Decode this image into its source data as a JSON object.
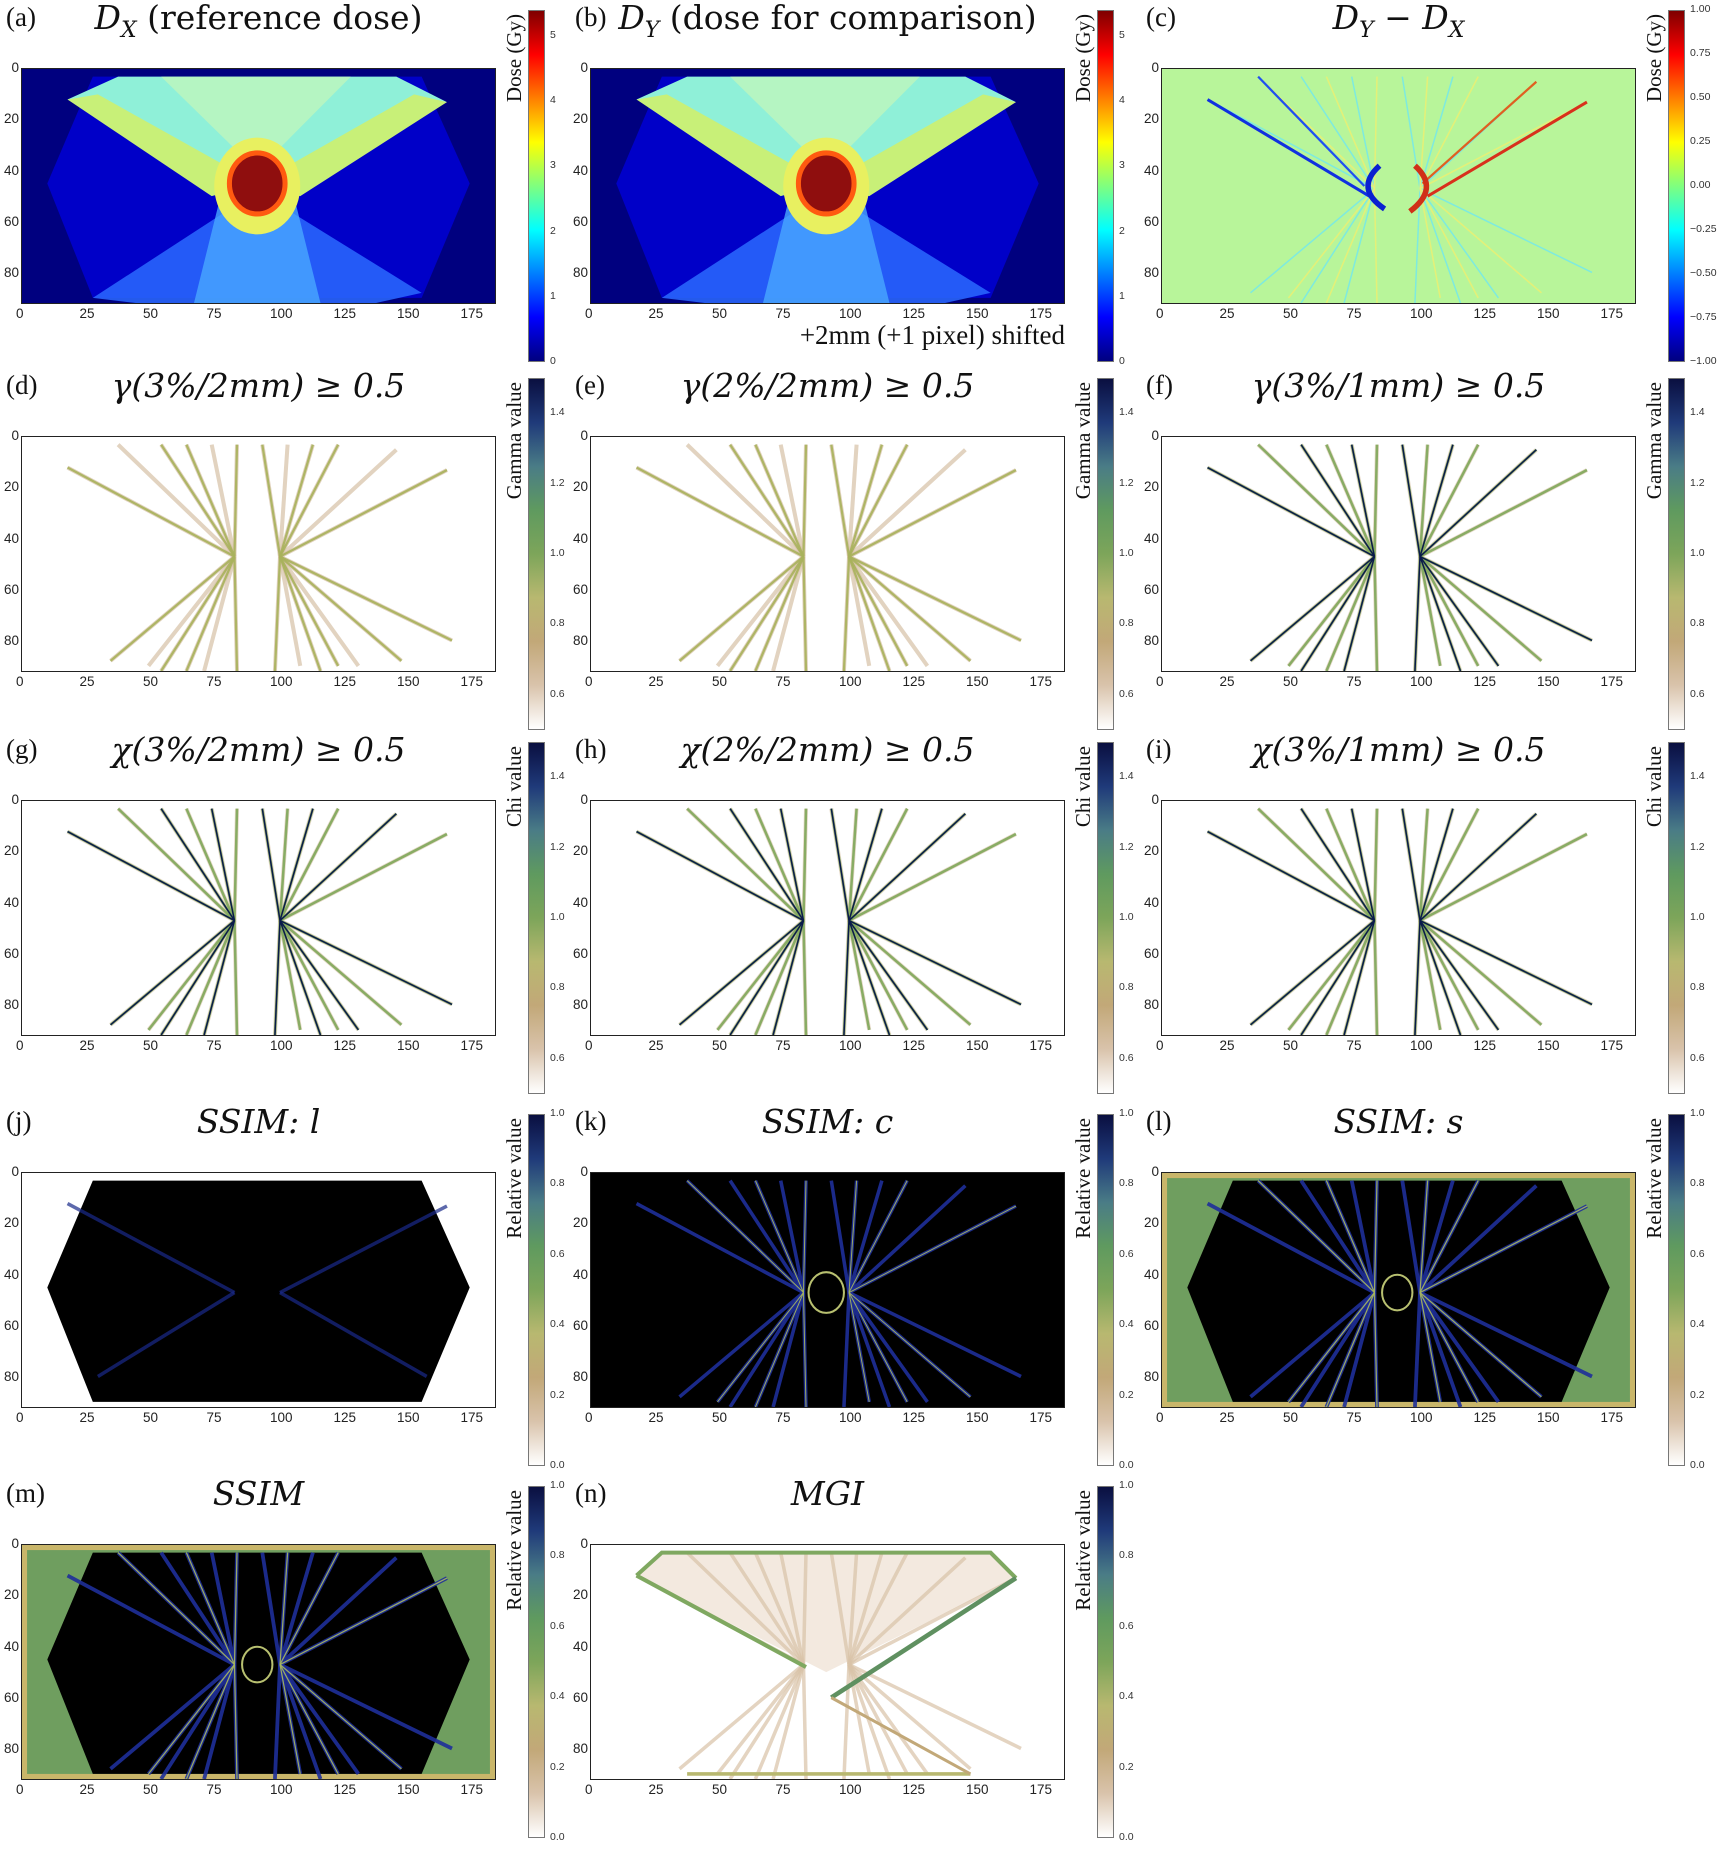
{
  "colormaps": {
    "jet": [
      "#00007f",
      "#0000ff",
      "#007fff",
      "#00ffff",
      "#7fff7f",
      "#ffff00",
      "#ff7f00",
      "#ff0000",
      "#7f0000"
    ],
    "earth_r": [
      "#ffffff",
      "#d9c3ab",
      "#c2a878",
      "#b8b870",
      "#7da55a",
      "#5f9a5f",
      "#4a7c86",
      "#1f3a7a",
      "#0a0f40"
    ]
  },
  "chart_data": [
    {
      "id": "a",
      "type": "heatmap",
      "label": "(a)",
      "title": [
        {
          "t": "D",
          "sub": "X"
        },
        {
          "t": " (reference dose)",
          "up": true
        }
      ],
      "xticks": [
        0,
        25,
        50,
        75,
        100,
        125,
        150,
        175
      ],
      "yticks": [
        0,
        20,
        40,
        60,
        80
      ],
      "xlim": [
        0,
        187
      ],
      "ylim": [
        92,
        0
      ],
      "colorbar": {
        "label": "Dose (Gy)",
        "ticks": [
          "0",
          "1",
          "2",
          "3",
          "4",
          "5"
        ],
        "range": [
          0,
          5.4
        ],
        "colormap": "jet"
      }
    },
    {
      "id": "b",
      "type": "heatmap",
      "label": "(b)",
      "title": [
        {
          "t": "D",
          "sub": "Y"
        },
        {
          "t": " (dose for comparison)",
          "up": true
        }
      ],
      "annotation": "+2mm (+1 pixel) shifted",
      "xticks": [
        0,
        25,
        50,
        75,
        100,
        125,
        150,
        175
      ],
      "yticks": [
        0,
        20,
        40,
        60,
        80
      ],
      "xlim": [
        0,
        187
      ],
      "ylim": [
        92,
        0
      ],
      "colorbar": {
        "label": "Dose (Gy)",
        "ticks": [
          "0",
          "1",
          "2",
          "3",
          "4",
          "5"
        ],
        "range": [
          0,
          5.4
        ],
        "colormap": "jet"
      }
    },
    {
      "id": "c",
      "type": "heatmap",
      "label": "(c)",
      "title": [
        {
          "t": "D",
          "sub": "Y"
        },
        {
          "t": " − ",
          "up": true
        },
        {
          "t": "D",
          "sub": "X"
        }
      ],
      "xticks": [
        0,
        25,
        50,
        75,
        100,
        125,
        150,
        175
      ],
      "yticks": [
        0,
        20,
        40,
        60,
        80
      ],
      "xlim": [
        0,
        187
      ],
      "ylim": [
        92,
        0
      ],
      "colorbar": {
        "label": "Dose (Gy)",
        "ticks": [
          "−1.00",
          "−0.75",
          "−0.50",
          "−0.25",
          "0.00",
          "0.25",
          "0.50",
          "0.75",
          "1.00"
        ],
        "range": [
          -1,
          1
        ],
        "colormap": "jet"
      }
    },
    {
      "id": "d",
      "type": "heatmap",
      "label": "(d)",
      "title": [
        {
          "t": "γ(3%/2mm) ≥ 0.5"
        }
      ],
      "xticks": [
        0,
        25,
        50,
        75,
        100,
        125,
        150,
        175
      ],
      "yticks": [
        0,
        20,
        40,
        60,
        80
      ],
      "xlim": [
        0,
        187
      ],
      "ylim": [
        92,
        0
      ],
      "colorbar": {
        "label": "Gamma value",
        "ticks": [
          "0.6",
          "0.8",
          "1.0",
          "1.2",
          "1.4"
        ],
        "range": [
          0.5,
          1.5
        ],
        "colormap": "earth_r"
      }
    },
    {
      "id": "e",
      "type": "heatmap",
      "label": "(e)",
      "title": [
        {
          "t": "γ(2%/2mm) ≥ 0.5"
        }
      ],
      "xticks": [
        0,
        25,
        50,
        75,
        100,
        125,
        150,
        175
      ],
      "yticks": [
        0,
        20,
        40,
        60,
        80
      ],
      "xlim": [
        0,
        187
      ],
      "ylim": [
        92,
        0
      ],
      "colorbar": {
        "label": "Gamma value",
        "ticks": [
          "0.6",
          "0.8",
          "1.0",
          "1.2",
          "1.4"
        ],
        "range": [
          0.5,
          1.5
        ],
        "colormap": "earth_r"
      }
    },
    {
      "id": "f",
      "type": "heatmap",
      "label": "(f)",
      "title": [
        {
          "t": "γ(3%/1mm) ≥ 0.5"
        }
      ],
      "xticks": [
        0,
        25,
        50,
        75,
        100,
        125,
        150,
        175
      ],
      "yticks": [
        0,
        20,
        40,
        60,
        80
      ],
      "xlim": [
        0,
        187
      ],
      "ylim": [
        92,
        0
      ],
      "colorbar": {
        "label": "Gamma value",
        "ticks": [
          "0.6",
          "0.8",
          "1.0",
          "1.2",
          "1.4"
        ],
        "range": [
          0.5,
          1.5
        ],
        "colormap": "earth_r"
      }
    },
    {
      "id": "g",
      "type": "heatmap",
      "label": "(g)",
      "title": [
        {
          "t": "χ(3%/2mm) ≥ 0.5"
        }
      ],
      "xticks": [
        0,
        25,
        50,
        75,
        100,
        125,
        150,
        175
      ],
      "yticks": [
        0,
        20,
        40,
        60,
        80
      ],
      "xlim": [
        0,
        187
      ],
      "ylim": [
        92,
        0
      ],
      "colorbar": {
        "label": "Chi value",
        "ticks": [
          "0.6",
          "0.8",
          "1.0",
          "1.2",
          "1.4"
        ],
        "range": [
          0.5,
          1.5
        ],
        "colormap": "earth_r"
      }
    },
    {
      "id": "h",
      "type": "heatmap",
      "label": "(h)",
      "title": [
        {
          "t": "χ(2%/2mm) ≥ 0.5"
        }
      ],
      "xticks": [
        0,
        25,
        50,
        75,
        100,
        125,
        150,
        175
      ],
      "yticks": [
        0,
        20,
        40,
        60,
        80
      ],
      "xlim": [
        0,
        187
      ],
      "ylim": [
        92,
        0
      ],
      "colorbar": {
        "label": "Chi value",
        "ticks": [
          "0.6",
          "0.8",
          "1.0",
          "1.2",
          "1.4"
        ],
        "range": [
          0.5,
          1.5
        ],
        "colormap": "earth_r"
      }
    },
    {
      "id": "i",
      "type": "heatmap",
      "label": "(i)",
      "title": [
        {
          "t": "χ(3%/1mm) ≥ 0.5"
        }
      ],
      "xticks": [
        0,
        25,
        50,
        75,
        100,
        125,
        150,
        175
      ],
      "yticks": [
        0,
        20,
        40,
        60,
        80
      ],
      "xlim": [
        0,
        187
      ],
      "ylim": [
        92,
        0
      ],
      "colorbar": {
        "label": "Chi value",
        "ticks": [
          "0.6",
          "0.8",
          "1.0",
          "1.2",
          "1.4"
        ],
        "range": [
          0.5,
          1.5
        ],
        "colormap": "earth_r"
      }
    },
    {
      "id": "j",
      "type": "heatmap",
      "label": "(j)",
      "title": [
        {
          "t": "SSIM: l"
        }
      ],
      "xticks": [
        0,
        25,
        50,
        75,
        100,
        125,
        150,
        175
      ],
      "yticks": [
        0,
        20,
        40,
        60,
        80
      ],
      "xlim": [
        0,
        187
      ],
      "ylim": [
        92,
        0
      ],
      "colorbar": {
        "label": "Relative value",
        "ticks": [
          "0.0",
          "0.2",
          "0.4",
          "0.6",
          "0.8",
          "1.0"
        ],
        "range": [
          0,
          1
        ],
        "colormap": "earth_r"
      }
    },
    {
      "id": "k",
      "type": "heatmap",
      "label": "(k)",
      "title": [
        {
          "t": "SSIM: c"
        }
      ],
      "xticks": [
        0,
        25,
        50,
        75,
        100,
        125,
        150,
        175
      ],
      "yticks": [
        0,
        20,
        40,
        60,
        80
      ],
      "xlim": [
        0,
        187
      ],
      "ylim": [
        92,
        0
      ],
      "colorbar": {
        "label": "Relative value",
        "ticks": [
          "0.0",
          "0.2",
          "0.4",
          "0.6",
          "0.8",
          "1.0"
        ],
        "range": [
          0,
          1
        ],
        "colormap": "earth_r"
      }
    },
    {
      "id": "l",
      "type": "heatmap",
      "label": "(l)",
      "title": [
        {
          "t": "SSIM: s"
        }
      ],
      "xticks": [
        0,
        25,
        50,
        75,
        100,
        125,
        150,
        175
      ],
      "yticks": [
        0,
        20,
        40,
        60,
        80
      ],
      "xlim": [
        0,
        187
      ],
      "ylim": [
        92,
        0
      ],
      "colorbar": {
        "label": "Relative value",
        "ticks": [
          "0.0",
          "0.2",
          "0.4",
          "0.6",
          "0.8",
          "1.0"
        ],
        "range": [
          0,
          1
        ],
        "colormap": "earth_r"
      }
    },
    {
      "id": "m",
      "type": "heatmap",
      "label": "(m)",
      "title": [
        {
          "t": "SSIM"
        }
      ],
      "xticks": [
        0,
        25,
        50,
        75,
        100,
        125,
        150,
        175
      ],
      "yticks": [
        0,
        20,
        40,
        60,
        80
      ],
      "xlim": [
        0,
        187
      ],
      "ylim": [
        92,
        0
      ],
      "colorbar": {
        "label": "Relative value",
        "ticks": [
          "0.0",
          "0.2",
          "0.4",
          "0.6",
          "0.8",
          "1.0"
        ],
        "range": [
          0,
          1
        ],
        "colormap": "earth_r"
      }
    },
    {
      "id": "n",
      "type": "heatmap",
      "label": "(n)",
      "title": [
        {
          "t": "MGI"
        }
      ],
      "xticks": [
        0,
        25,
        50,
        75,
        100,
        125,
        150,
        175
      ],
      "yticks": [
        0,
        20,
        40,
        60,
        80
      ],
      "xlim": [
        0,
        187
      ],
      "ylim": [
        92,
        0
      ],
      "colorbar": {
        "label": "Relative value",
        "ticks": [
          "0.0",
          "0.2",
          "0.4",
          "0.6",
          "0.8",
          "1.0"
        ],
        "range": [
          0,
          1
        ],
        "colormap": "earth_r"
      }
    }
  ]
}
